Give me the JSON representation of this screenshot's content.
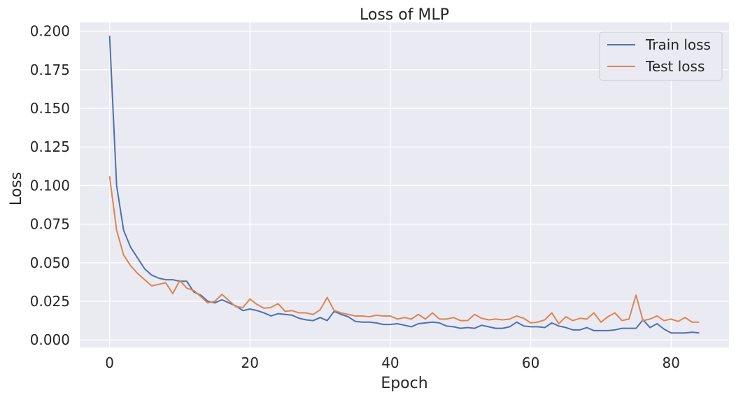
{
  "chart_data": {
    "type": "line",
    "title": "Loss of MLP",
    "xlabel": "Epoch",
    "ylabel": "Loss",
    "xlim": [
      -4.25,
      88.25
    ],
    "ylim": [
      -0.0049,
      0.2057
    ],
    "xticks": [
      0,
      20,
      40,
      60,
      80
    ],
    "xtick_labels": [
      "0",
      "20",
      "40",
      "60",
      "80"
    ],
    "yticks": [
      0.0,
      0.025,
      0.05,
      0.075,
      0.1,
      0.125,
      0.15,
      0.175,
      0.2
    ],
    "ytick_labels": [
      "0.000",
      "0.025",
      "0.050",
      "0.075",
      "0.100",
      "0.125",
      "0.150",
      "0.175",
      "0.200"
    ],
    "grid": true,
    "legend_position": "top-right",
    "x": [
      0,
      1,
      2,
      3,
      4,
      5,
      6,
      7,
      8,
      9,
      10,
      11,
      12,
      13,
      14,
      15,
      16,
      17,
      18,
      19,
      20,
      21,
      22,
      23,
      24,
      25,
      26,
      27,
      28,
      29,
      30,
      31,
      32,
      33,
      34,
      35,
      36,
      37,
      38,
      39,
      40,
      41,
      42,
      43,
      44,
      45,
      46,
      47,
      48,
      49,
      50,
      51,
      52,
      53,
      54,
      55,
      56,
      57,
      58,
      59,
      60,
      61,
      62,
      63,
      64,
      65,
      66,
      67,
      68,
      69,
      70,
      71,
      72,
      73,
      74,
      75,
      76,
      77,
      78,
      79,
      80,
      81,
      82,
      83,
      84
    ],
    "series": [
      {
        "name": "Train loss",
        "color": "#4c72b0",
        "values": [
          0.197,
          0.1,
          0.071,
          0.06,
          0.053,
          0.046,
          0.042,
          0.04,
          0.039,
          0.039,
          0.038,
          0.038,
          0.031,
          0.029,
          0.025,
          0.024,
          0.026,
          0.024,
          0.022,
          0.019,
          0.02,
          0.019,
          0.0175,
          0.0155,
          0.017,
          0.0165,
          0.016,
          0.014,
          0.013,
          0.0125,
          0.0145,
          0.0125,
          0.0185,
          0.0165,
          0.015,
          0.012,
          0.0115,
          0.0115,
          0.011,
          0.01,
          0.01,
          0.0105,
          0.0095,
          0.0085,
          0.0105,
          0.011,
          0.0115,
          0.011,
          0.009,
          0.0085,
          0.0075,
          0.008,
          0.0075,
          0.0095,
          0.0085,
          0.0075,
          0.0075,
          0.0085,
          0.0115,
          0.009,
          0.0085,
          0.0085,
          0.008,
          0.011,
          0.009,
          0.008,
          0.0065,
          0.0065,
          0.008,
          0.006,
          0.006,
          0.006,
          0.0065,
          0.0075,
          0.0075,
          0.0075,
          0.013,
          0.008,
          0.0105,
          0.007,
          0.0045,
          0.0045,
          0.0045,
          0.005,
          0.0045
        ]
      },
      {
        "name": "Test loss",
        "color": "#dd8452",
        "values": [
          0.106,
          0.071,
          0.055,
          0.048,
          0.043,
          0.039,
          0.035,
          0.036,
          0.037,
          0.03,
          0.0385,
          0.0335,
          0.032,
          0.028,
          0.024,
          0.025,
          0.0295,
          0.0255,
          0.0215,
          0.021,
          0.0265,
          0.023,
          0.0205,
          0.021,
          0.0235,
          0.0185,
          0.019,
          0.0175,
          0.0175,
          0.0165,
          0.0195,
          0.0275,
          0.019,
          0.0175,
          0.0165,
          0.0155,
          0.0155,
          0.015,
          0.016,
          0.0155,
          0.0155,
          0.0135,
          0.0145,
          0.0135,
          0.0165,
          0.0135,
          0.0175,
          0.0135,
          0.0135,
          0.0145,
          0.0125,
          0.0125,
          0.0165,
          0.014,
          0.013,
          0.0135,
          0.013,
          0.0135,
          0.0155,
          0.014,
          0.011,
          0.0115,
          0.013,
          0.0175,
          0.0105,
          0.015,
          0.0125,
          0.014,
          0.0135,
          0.0175,
          0.0115,
          0.015,
          0.0175,
          0.0125,
          0.0135,
          0.029,
          0.0125,
          0.0135,
          0.0155,
          0.0125,
          0.0135,
          0.012,
          0.0145,
          0.0115,
          0.0115
        ]
      }
    ]
  }
}
